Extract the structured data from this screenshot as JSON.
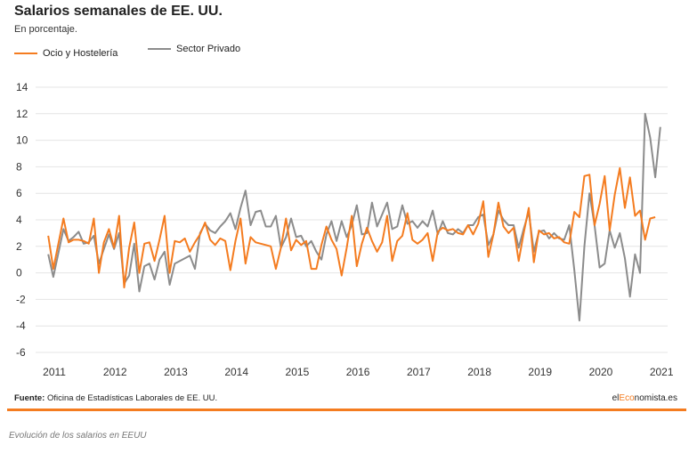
{
  "colors": {
    "accent": "#f47c20",
    "series_private": "#8c8c8c",
    "brand_accent": "#f47c20"
  },
  "footer": {
    "source_label": "Fuente:",
    "source_text": "Oficina de Estadísticas Laborales de EE. UU.",
    "brand_prefix": "el",
    "brand_accent": "Eco",
    "brand_suffix": "nomista.es"
  },
  "caption": "Evolución de los salarios en EEUU",
  "chart_data": {
    "type": "line",
    "title": "Salarios semanales de EE. UU.",
    "subtitle": "En porcentaje.",
    "legend_placement": "top-left",
    "grid": true,
    "xlim": [
      2010.75,
      2021.1
    ],
    "ylim": [
      -6,
      14
    ],
    "yticks": [
      14,
      12,
      10,
      8,
      6,
      4,
      2,
      0,
      -2,
      -4,
      -6
    ],
    "xticks": [
      {
        "label": "2011",
        "value": 2011
      },
      {
        "label": "2012",
        "value": 2012
      },
      {
        "label": "2013",
        "value": 2013
      },
      {
        "label": "2014",
        "value": 2014
      },
      {
        "label": "2015",
        "value": 2015
      },
      {
        "label": "2016",
        "value": 2016
      },
      {
        "label": "2017",
        "value": 2017
      },
      {
        "label": "2018",
        "value": 2018
      },
      {
        "label": "2019",
        "value": 2019
      },
      {
        "label": "2020",
        "value": 2020
      },
      {
        "label": "2021",
        "value": 2021
      }
    ],
    "x_start": 2010.9,
    "x_step": 0.0833,
    "series": [
      {
        "name": "Ocio y Hostelería",
        "color": "#f47c20",
        "values": [
          2.8,
          0.3,
          2.2,
          4.1,
          2.3,
          2.5,
          2.5,
          2.4,
          2.2,
          4.1,
          0.0,
          2.3,
          3.3,
          1.9,
          4.3,
          -1.1,
          1.9,
          3.8,
          0.0,
          2.2,
          2.3,
          0.9,
          2.5,
          4.3,
          0.0,
          2.4,
          2.3,
          2.6,
          1.6,
          2.3,
          2.9,
          3.8,
          2.5,
          2.1,
          2.6,
          2.4,
          0.2,
          2.4,
          4.1,
          0.7,
          2.7,
          2.3,
          2.2,
          2.1,
          2.0,
          0.3,
          1.9,
          4.1,
          1.7,
          2.5,
          2.1,
          2.4,
          0.3,
          0.3,
          2.1,
          3.5,
          2.5,
          1.8,
          -0.2,
          1.9,
          4.3,
          0.5,
          2.2,
          3.4,
          2.4,
          1.6,
          2.3,
          4.3,
          0.9,
          2.4,
          2.8,
          4.5,
          2.5,
          2.2,
          2.5,
          3.0,
          0.9,
          3.1,
          3.4,
          3.2,
          3.3,
          3.0,
          2.9,
          3.6,
          2.9,
          3.7,
          5.4,
          1.2,
          2.9,
          5.3,
          3.5,
          3.0,
          3.4,
          0.9,
          3.0,
          4.9,
          0.8,
          3.2,
          2.9,
          3.0,
          2.6,
          2.7,
          2.3,
          2.2,
          4.6,
          4.2,
          7.3,
          7.4,
          3.6,
          5.2,
          7.3,
          3.2,
          5.9,
          7.9,
          4.9,
          7.2,
          4.3,
          4.7,
          2.5,
          4.1,
          4.2
        ]
      },
      {
        "name": "Sector Privado",
        "color": "#8c8c8c",
        "values": [
          1.4,
          -0.3,
          1.5,
          3.3,
          2.4,
          2.7,
          3.1,
          2.2,
          2.3,
          2.8,
          0.7,
          1.8,
          2.9,
          1.8,
          3.0,
          -0.8,
          -0.2,
          2.2,
          -1.4,
          0.5,
          0.7,
          -0.5,
          1.0,
          1.6,
          -0.9,
          0.7,
          0.9,
          1.1,
          1.3,
          0.3,
          3.0,
          3.7,
          3.2,
          3.0,
          3.5,
          3.9,
          4.5,
          3.3,
          4.9,
          6.2,
          3.6,
          4.6,
          4.7,
          3.5,
          3.5,
          4.3,
          1.9,
          2.7,
          4.1,
          2.7,
          2.8,
          2.0,
          2.4,
          1.6,
          1.0,
          2.9,
          3.9,
          2.4,
          3.9,
          2.7,
          3.6,
          5.1,
          2.9,
          3.0,
          5.3,
          3.5,
          4.4,
          5.3,
          3.3,
          3.5,
          5.1,
          3.7,
          3.9,
          3.4,
          3.9,
          3.5,
          4.7,
          2.9,
          3.9,
          3.0,
          2.9,
          3.3,
          3.0,
          3.6,
          3.6,
          4.2,
          4.4,
          2.1,
          2.9,
          4.7,
          4.0,
          3.6,
          3.6,
          1.9,
          3.3,
          4.6,
          1.6,
          3.1,
          3.2,
          2.6,
          3.0,
          2.6,
          2.5,
          3.6,
          0.2,
          -3.6,
          2.0,
          6.0,
          3.6,
          0.4,
          0.7,
          3.2,
          1.9,
          3.0,
          1.1,
          -1.8,
          1.4,
          0.0,
          12.0,
          10.2,
          7.2,
          11.0
        ]
      }
    ]
  }
}
